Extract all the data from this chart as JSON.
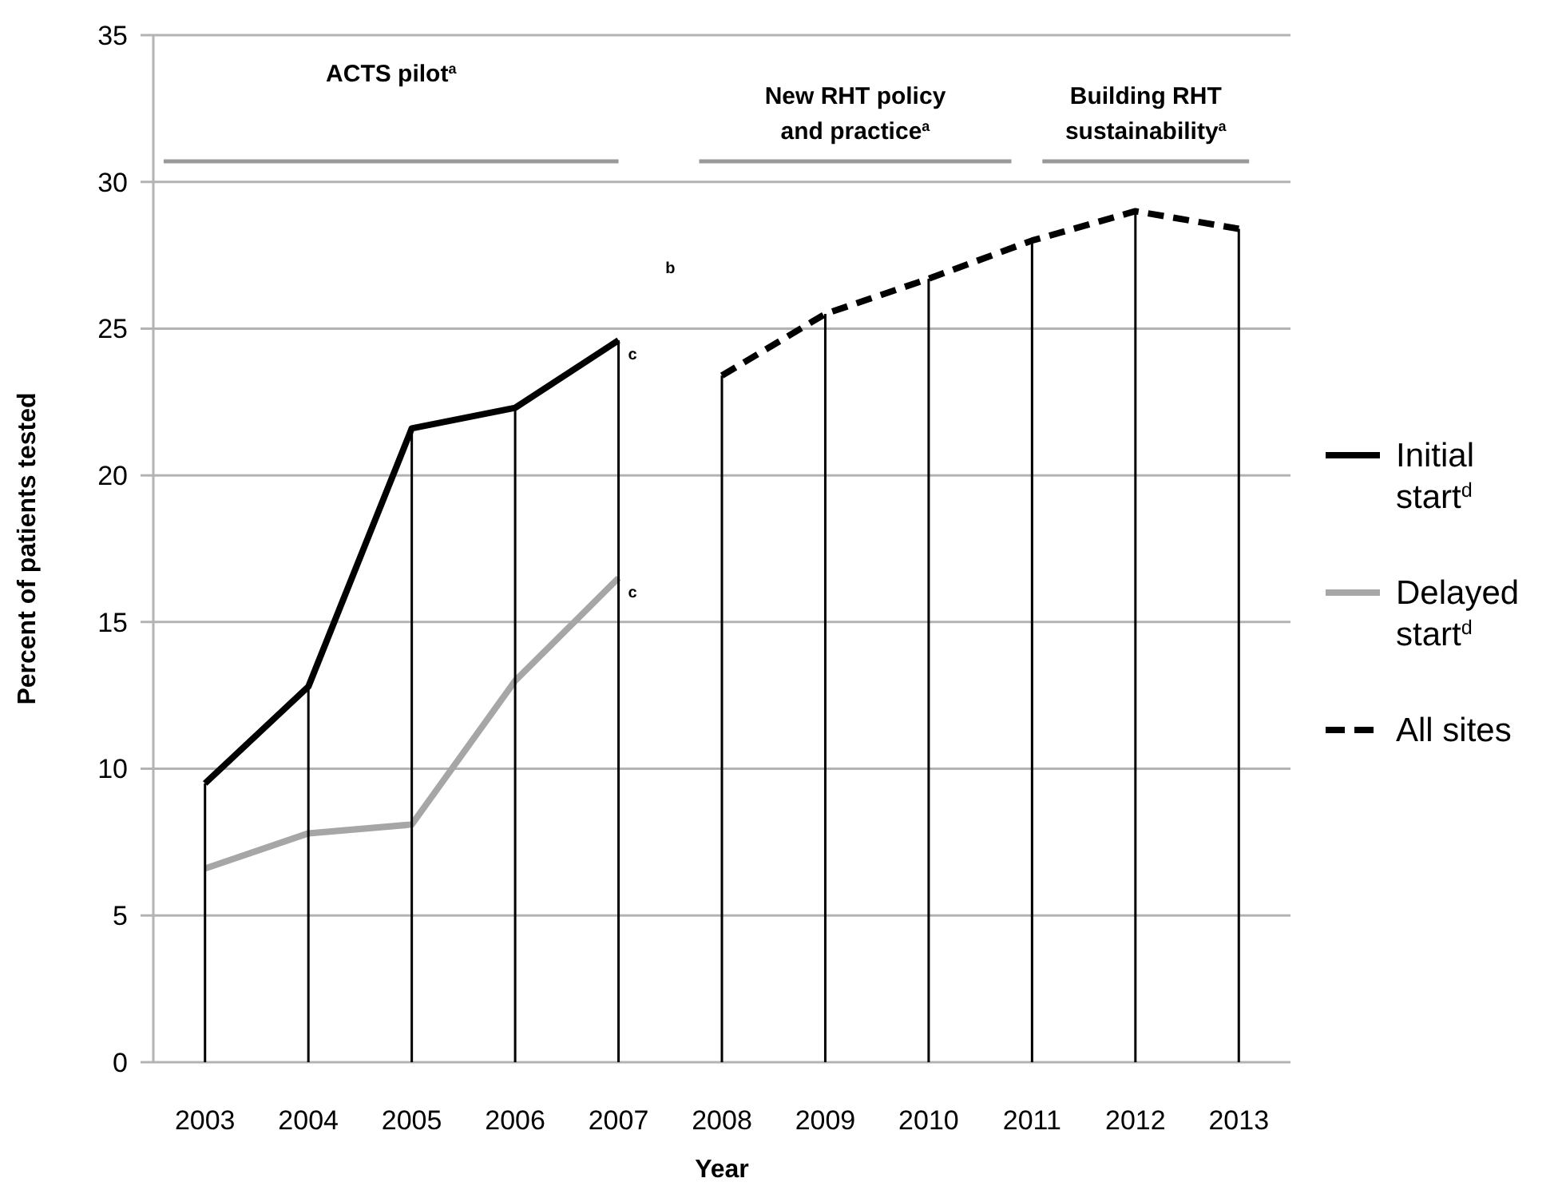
{
  "chart_data": {
    "type": "line",
    "xlabel": "Year",
    "ylabel": "Percent of patients tested",
    "categories": [
      "2003",
      "2004",
      "2005",
      "2006",
      "2007",
      "2008",
      "2009",
      "2010",
      "2011",
      "2012",
      "2013"
    ],
    "series": [
      {
        "name": "Initial start$^{d}$",
        "color": "#000000",
        "line_style": "solid",
        "values": [
          9.5,
          12.8,
          21.6,
          22.3,
          24.6,
          null,
          null,
          null,
          null,
          null,
          null
        ]
      },
      {
        "name": "Delayed start$^{d}$",
        "color": "#a6a6a6",
        "line_style": "solid",
        "values": [
          6.6,
          7.8,
          8.1,
          13.0,
          16.5,
          null,
          null,
          null,
          null,
          null,
          null
        ]
      },
      {
        "name": "All sites",
        "color": "#000000",
        "line_style": "dashed",
        "values": [
          null,
          null,
          null,
          null,
          null,
          23.4,
          25.5,
          26.7,
          28.0,
          29.0,
          28.4
        ]
      },
      {
        "type": "bar",
        "color": "#000000",
        "values": [
          9.5,
          12.8,
          21.6,
          22.3,
          24.6,
          23.4,
          25.5,
          26.7,
          28.0,
          29.0,
          28.4
        ]
      }
    ],
    "ylim": [
      0,
      35
    ],
    "yticks": [
      0,
      5,
      10,
      15,
      20,
      25,
      30,
      35
    ],
    "grid": "y",
    "legend": "right",
    "marker": "none",
    "annotations": [
      "ACTS pilot$^{a}$",
      "New RHT policy and practice$^{a}$",
      "Building RHT sustainability$^{a}$",
      "b",
      {
        "text": "c",
        "x": "2007",
        "y": 24.6
      },
      {
        "text": "c",
        "x": "2007",
        "y": 16.5
      }
    ]
  }
}
